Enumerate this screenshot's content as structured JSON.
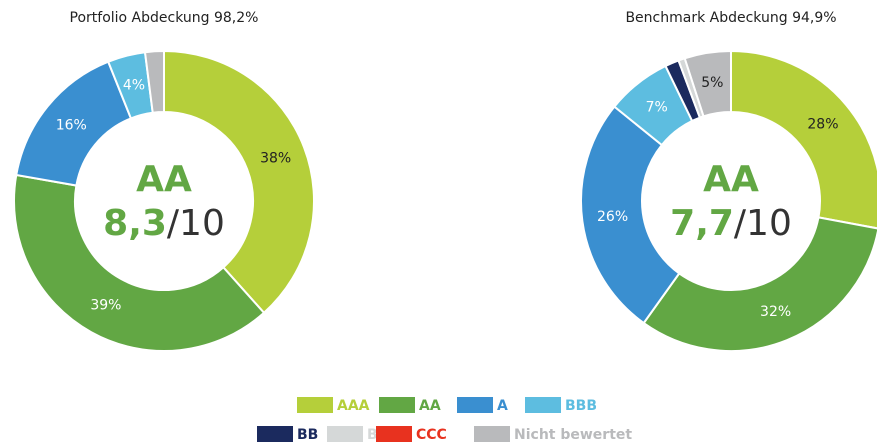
{
  "chart_data": [
    {
      "type": "pie",
      "title": "Portfolio Abdeckung 98,2%",
      "center_rating": "AA",
      "center_score": "8,3",
      "center_scale": "/10",
      "categories": [
        "AAA",
        "AA",
        "A",
        "BBB",
        "BB",
        "B",
        "CCC",
        "Nicht bewertet"
      ],
      "values": [
        38,
        39,
        16,
        4,
        0,
        0,
        0,
        2
      ],
      "value_labels": [
        "38%",
        "39%",
        "16%",
        "4%",
        null,
        null,
        null,
        null
      ],
      "colors": [
        "#b5cf3a",
        "#62a744",
        "#3a8fd0",
        "#5dbde0",
        "#1b2a5e",
        "#d5d8d8",
        "#e8321f",
        "#b9babc"
      ]
    },
    {
      "type": "pie",
      "title": "Benchmark Abdeckung 94,9%",
      "center_rating": "AA",
      "center_score": "7,7",
      "center_scale": "/10",
      "categories": [
        "AAA",
        "AA",
        "A",
        "BBB",
        "BB",
        "B",
        "CCC",
        "Nicht bewertet"
      ],
      "values": [
        28,
        32,
        26,
        7,
        1.5,
        0.7,
        0,
        5
      ],
      "value_labels": [
        "28%",
        "32%",
        "26%",
        "7%",
        null,
        null,
        null,
        "5%"
      ],
      "colors": [
        "#b5cf3a",
        "#62a744",
        "#3a8fd0",
        "#5dbde0",
        "#1b2a5e",
        "#d5d8d8",
        "#e8321f",
        "#b9babc"
      ]
    }
  ]
}
